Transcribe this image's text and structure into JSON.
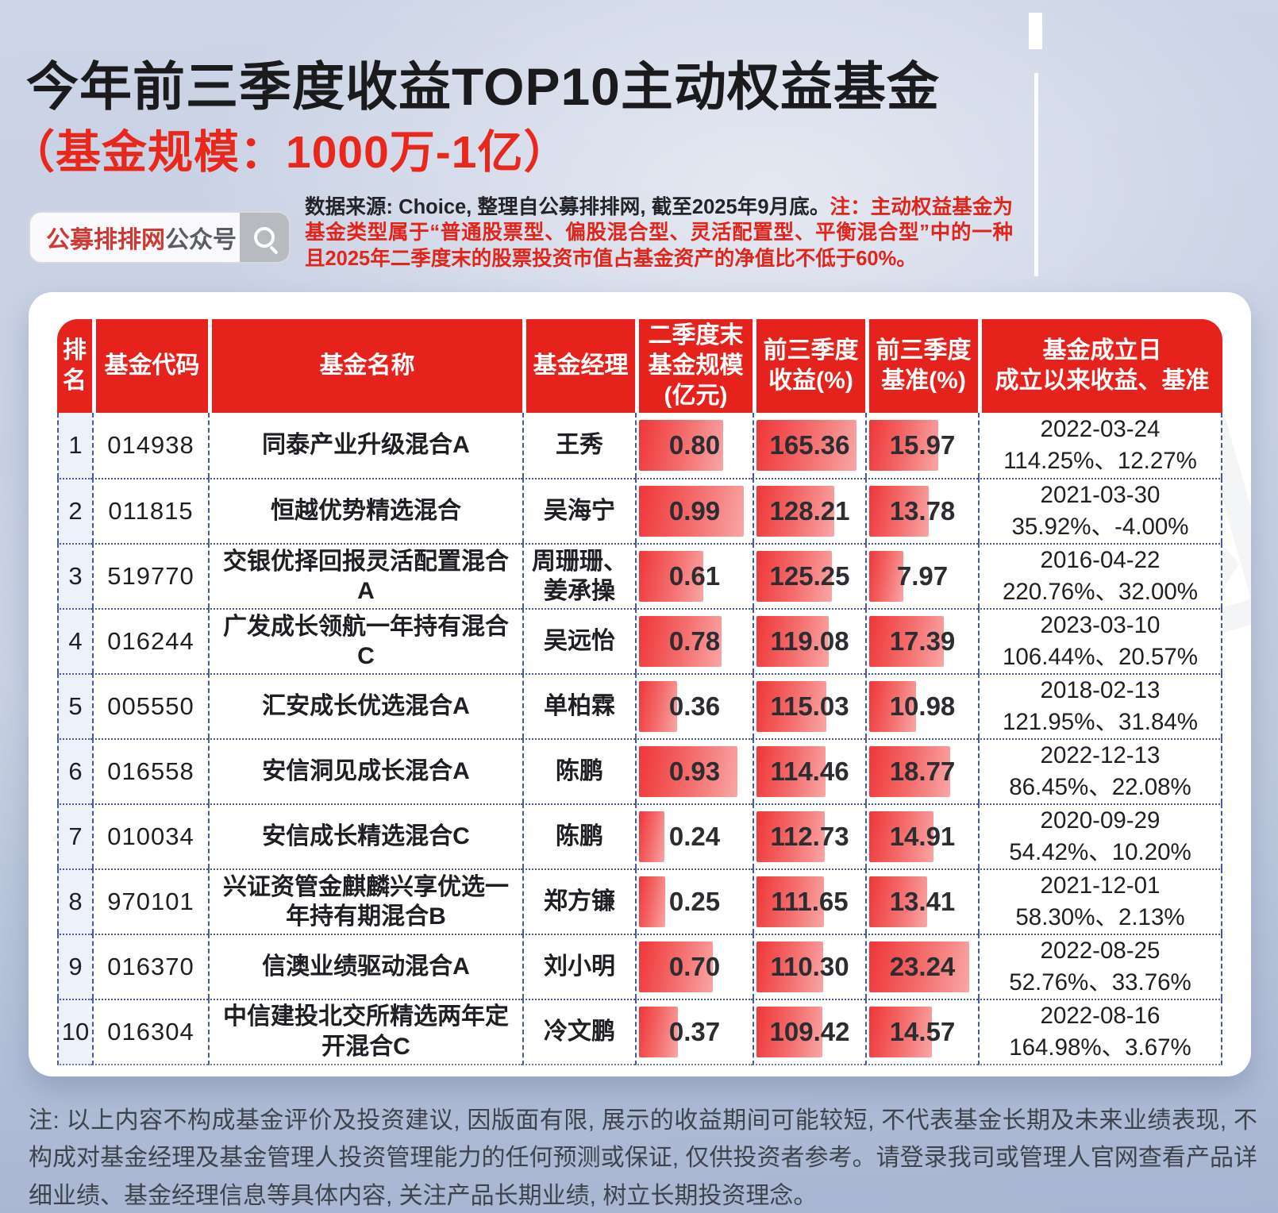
{
  "header": {
    "title": "今年前三季度收益TOP10主动权益基金",
    "subtitle": "（基金规模：1000万-1亿）",
    "search": {
      "brand": "公募排排网",
      "suffix": "公众号",
      "icon": "search-icon"
    },
    "source_plain": "数据来源: Choice, 整理自公募排排网, 截至2025年9月底。",
    "source_note": "注：主动权益基金为基金类型属于“普通股票型、偏股混合型、灵活配置型、平衡混合型”中的一种且2025年二季度末的股票投资市值占基金资产的净值比不低于60%。"
  },
  "watermark": "公募排排网",
  "colors": {
    "header_red": "#e5231c",
    "accent_red": "#e8271d",
    "bar_gradient_start": "#ef3638",
    "bar_gradient_end": "#f9a6a6",
    "grid_dash_blue": "#4b59a0",
    "background_blue": "#c0cbdf"
  },
  "chart_data": {
    "type": "table",
    "title": "今年前三季度收益TOP10主动权益基金（基金规模：1000万-1亿）",
    "columns": [
      "排\n名",
      "基金代码",
      "基金名称",
      "基金经理",
      "二季度末\n基金规模\n(亿元)",
      "前三季度\n收益(%)",
      "前三季度\n基准(%)",
      "基金成立日\n成立以来收益、基准"
    ],
    "rows": [
      {
        "rank": "1",
        "code": "014938",
        "name": "同泰产业升级混合A",
        "manager": "王秀",
        "scale": "0.80",
        "q3_return": "165.36",
        "q3_benchmark": "15.97",
        "established": "2022-03-24",
        "since_return": "114.25%、12.27%"
      },
      {
        "rank": "2",
        "code": "011815",
        "name": "恒越优势精选混合",
        "manager": "吴海宁",
        "scale": "0.99",
        "q3_return": "128.21",
        "q3_benchmark": "13.78",
        "established": "2021-03-30",
        "since_return": "35.92%、-4.00%"
      },
      {
        "rank": "3",
        "code": "519770",
        "name": "交银优择回报灵活配置混合A",
        "manager": "周珊珊、姜承操",
        "scale": "0.61",
        "q3_return": "125.25",
        "q3_benchmark": "7.97",
        "established": "2016-04-22",
        "since_return": "220.76%、32.00%"
      },
      {
        "rank": "4",
        "code": "016244",
        "name": "广发成长领航一年持有混合C",
        "manager": "吴远怡",
        "scale": "0.78",
        "q3_return": "119.08",
        "q3_benchmark": "17.39",
        "established": "2023-03-10",
        "since_return": "106.44%、20.57%"
      },
      {
        "rank": "5",
        "code": "005550",
        "name": "汇安成长优选混合A",
        "manager": "单柏霖",
        "scale": "0.36",
        "q3_return": "115.03",
        "q3_benchmark": "10.98",
        "established": "2018-02-13",
        "since_return": "121.95%、31.84%"
      },
      {
        "rank": "6",
        "code": "016558",
        "name": "安信洞见成长混合A",
        "manager": "陈鹏",
        "scale": "0.93",
        "q3_return": "114.46",
        "q3_benchmark": "18.77",
        "established": "2022-12-13",
        "since_return": "86.45%、22.08%"
      },
      {
        "rank": "7",
        "code": "010034",
        "name": "安信成长精选混合C",
        "manager": "陈鹏",
        "scale": "0.24",
        "q3_return": "112.73",
        "q3_benchmark": "14.91",
        "established": "2020-09-29",
        "since_return": "54.42%、10.20%"
      },
      {
        "rank": "8",
        "code": "970101",
        "name": "兴证资管金麒麟兴享优选一年持有期混合B",
        "manager": "郑方镰",
        "scale": "0.25",
        "q3_return": "111.65",
        "q3_benchmark": "13.41",
        "established": "2021-12-01",
        "since_return": "58.30%、2.13%"
      },
      {
        "rank": "9",
        "code": "016370",
        "name": "信澳业绩驱动混合A",
        "manager": "刘小明",
        "scale": "0.70",
        "q3_return": "110.30",
        "q3_benchmark": "23.24",
        "established": "2022-08-25",
        "since_return": "52.76%、33.76%"
      },
      {
        "rank": "10",
        "code": "016304",
        "name": "中信建投北交所精选两年定开混合C",
        "manager": "冷文鹏",
        "scale": "0.37",
        "q3_return": "109.42",
        "q3_benchmark": "14.57",
        "established": "2022-08-16",
        "since_return": "164.98%、3.67%"
      }
    ]
  },
  "footer_note": "注: 以上内容不构成基金评价及投资建议, 因版面有限, 展示的收益期间可能较短, 不代表基金长期及未来业绩表现, 不构成对基金经理及基金管理人投资管理能力的任何预测或保证, 仅供投资者参考。请登录我司或管理人官网查看产品详细业绩、基金经理信息等具体内容, 关注产品长期业绩, 树立长期投资理念。"
}
